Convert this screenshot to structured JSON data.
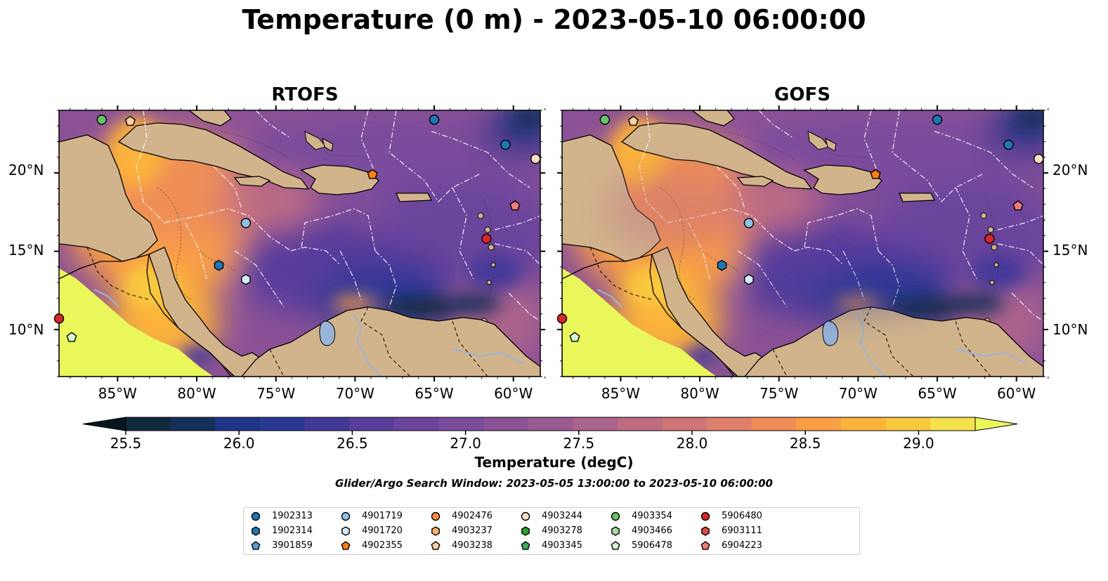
{
  "title": "Temperature (0 m) - 2023-05-10 06:00:00",
  "panels": [
    {
      "title": "RTOFS"
    },
    {
      "title": "GOFS"
    }
  ],
  "axes": {
    "lon_ticks": [
      "85°W",
      "80°W",
      "75°W",
      "70°W",
      "65°W",
      "60°W"
    ],
    "lat_ticks": [
      "20°N",
      "15°N",
      "10°N"
    ],
    "lon_range": [
      -88.7,
      -58.3
    ],
    "lat_range": [
      7.0,
      24.0
    ]
  },
  "colorbar": {
    "label": "Temperature (degC)",
    "ticks": [
      "25.5",
      "26.0",
      "26.5",
      "27.0",
      "27.5",
      "28.0",
      "28.5",
      "29.0"
    ],
    "range": [
      25.25,
      29.25
    ],
    "colors": [
      "#0d2b3d",
      "#142f5c",
      "#1f3585",
      "#2a3895",
      "#42399a",
      "#583e9b",
      "#6b449c",
      "#7a4b9c",
      "#8b5196",
      "#9a5b93",
      "#ab648c",
      "#be6c82",
      "#d07477",
      "#e0806a",
      "#ef8f57",
      "#f99f44",
      "#fcb33b",
      "#f9c93d",
      "#f3e24d"
    ],
    "extend_low": "#06161f",
    "extend_high": "#e9f75a"
  },
  "search_window": "Glider/Argo Search Window: 2023-05-05 13:00:00 to 2023-05-10 06:00:00",
  "colors": {
    "land": "#d2b48c",
    "lake": "#98b4d8"
  },
  "legend": [
    {
      "label": "1902313",
      "marker": "circle",
      "color": "#1f77b4"
    },
    {
      "label": "1902314",
      "marker": "hexagon",
      "color": "#1f77b4"
    },
    {
      "label": "3901859",
      "marker": "pentagon",
      "color": "#5b9bd5"
    },
    {
      "label": "4901719",
      "marker": "circle",
      "color": "#8ec1e6"
    },
    {
      "label": "4901720",
      "marker": "hexagon",
      "color": "#d6eaf8"
    },
    {
      "label": "4902355",
      "marker": "pentagon",
      "color": "#ff7f0e"
    },
    {
      "label": "4902476",
      "marker": "circle",
      "color": "#fd8d3c"
    },
    {
      "label": "4903237",
      "marker": "hexagon",
      "color": "#fdae6b"
    },
    {
      "label": "4903238",
      "marker": "pentagon",
      "color": "#fdd0a2"
    },
    {
      "label": "4903244",
      "marker": "circle",
      "color": "#fde0c5"
    },
    {
      "label": "4903278",
      "marker": "hexagon",
      "color": "#2ca02c"
    },
    {
      "label": "4903345",
      "marker": "pentagon",
      "color": "#41ab5d"
    },
    {
      "label": "4903354",
      "marker": "circle",
      "color": "#66c26a"
    },
    {
      "label": "4903466",
      "marker": "hexagon",
      "color": "#a1d99b"
    },
    {
      "label": "5906478",
      "marker": "pentagon",
      "color": "#d7f5d0"
    },
    {
      "label": "5906480",
      "marker": "circle",
      "color": "#d62728"
    },
    {
      "label": "6903111",
      "marker": "hexagon",
      "color": "#de4a4a"
    },
    {
      "label": "6904223",
      "marker": "pentagon",
      "color": "#f07b7b"
    }
  ],
  "platform_positions": [
    {
      "id": "4903354",
      "lon": -86.0,
      "lat": 23.4
    },
    {
      "id": "4903238",
      "lon": -84.2,
      "lat": 23.3
    },
    {
      "id": "1902313",
      "lon": -65.0,
      "lat": 23.4
    },
    {
      "id": "1902313",
      "lon": -60.5,
      "lat": 21.8
    },
    {
      "id": "4903244",
      "lon": -58.6,
      "lat": 20.9
    },
    {
      "id": "4902355",
      "lon": -68.9,
      "lat": 19.9
    },
    {
      "id": "6904223",
      "lon": -59.9,
      "lat": 17.9
    },
    {
      "id": "4901719",
      "lon": -76.9,
      "lat": 16.8
    },
    {
      "id": "5906480",
      "lon": -61.7,
      "lat": 15.8
    },
    {
      "id": "1902314",
      "lon": -78.6,
      "lat": 14.1
    },
    {
      "id": "4901720",
      "lon": -76.9,
      "lat": 13.2
    },
    {
      "id": "5906478",
      "lon": -87.9,
      "lat": 9.5
    },
    {
      "id": "5906480",
      "lon": -88.7,
      "lat": 10.7
    }
  ]
}
